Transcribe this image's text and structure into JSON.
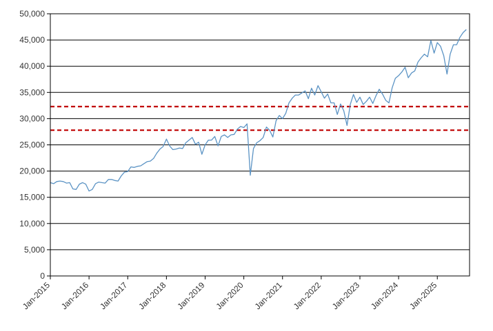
{
  "chart_data": {
    "type": "line",
    "title": "",
    "xlabel": "",
    "ylabel": "",
    "ylim": [
      0,
      50000
    ],
    "xlim": [
      "2015-01",
      "2025-11"
    ],
    "grid": true,
    "y_ticks": [
      0,
      5000,
      10000,
      15000,
      20000,
      25000,
      30000,
      35000,
      40000,
      45000,
      50000
    ],
    "y_tick_labels": [
      "0",
      "5,000",
      "10,000",
      "15,000",
      "20,000",
      "25,000",
      "30,000",
      "35,000",
      "40,000",
      "45,000",
      "50,000"
    ],
    "x_ticks": [
      "2015-01",
      "2016-01",
      "2017-01",
      "2018-01",
      "2019-01",
      "2020-01",
      "2021-01",
      "2022-01",
      "2023-01",
      "2024-01",
      "2025-01"
    ],
    "x_tick_labels": [
      "Jan-2015",
      "Jan-2016",
      "Jan-2017",
      "Jan-2018",
      "Jan-2019",
      "Jan-2020",
      "Jan-2021",
      "Jan-2022",
      "Jan-2023",
      "Jan-2024",
      "Jan-2025"
    ],
    "reference_lines": [
      {
        "y": 32300,
        "style": "dashed",
        "color": "#c00000"
      },
      {
        "y": 27800,
        "style": "dashed",
        "color": "#c00000"
      }
    ],
    "series": [
      {
        "color": "#5b93c4",
        "points": [
          [
            "2015-01",
            17800
          ],
          [
            "2015-02",
            17600
          ],
          [
            "2015-03",
            18000
          ],
          [
            "2015-04",
            18100
          ],
          [
            "2015-05",
            18000
          ],
          [
            "2015-06",
            17700
          ],
          [
            "2015-07",
            17800
          ],
          [
            "2015-08",
            16600
          ],
          [
            "2015-09",
            16500
          ],
          [
            "2015-10",
            17500
          ],
          [
            "2015-11",
            17800
          ],
          [
            "2015-12",
            17500
          ],
          [
            "2016-01",
            16200
          ],
          [
            "2016-02",
            16500
          ],
          [
            "2016-03",
            17600
          ],
          [
            "2016-04",
            17900
          ],
          [
            "2016-05",
            17800
          ],
          [
            "2016-06",
            17700
          ],
          [
            "2016-07",
            18400
          ],
          [
            "2016-08",
            18400
          ],
          [
            "2016-09",
            18200
          ],
          [
            "2016-10",
            18100
          ],
          [
            "2016-11",
            19100
          ],
          [
            "2016-12",
            19800
          ],
          [
            "2017-01",
            19900
          ],
          [
            "2017-02",
            20800
          ],
          [
            "2017-03",
            20700
          ],
          [
            "2017-04",
            20900
          ],
          [
            "2017-05",
            21000
          ],
          [
            "2017-06",
            21400
          ],
          [
            "2017-07",
            21800
          ],
          [
            "2017-08",
            21900
          ],
          [
            "2017-09",
            22400
          ],
          [
            "2017-10",
            23400
          ],
          [
            "2017-11",
            24200
          ],
          [
            "2017-12",
            24700
          ],
          [
            "2018-01",
            26100
          ],
          [
            "2018-02",
            24800
          ],
          [
            "2018-03",
            24100
          ],
          [
            "2018-04",
            24200
          ],
          [
            "2018-05",
            24400
          ],
          [
            "2018-06",
            24300
          ],
          [
            "2018-07",
            25400
          ],
          [
            "2018-08",
            25900
          ],
          [
            "2018-09",
            26400
          ],
          [
            "2018-10",
            25100
          ],
          [
            "2018-11",
            25500
          ],
          [
            "2018-12",
            23200
          ],
          [
            "2019-01",
            25000
          ],
          [
            "2019-02",
            25900
          ],
          [
            "2019-03",
            25900
          ],
          [
            "2019-04",
            26600
          ],
          [
            "2019-05",
            24800
          ],
          [
            "2019-06",
            26600
          ],
          [
            "2019-07",
            26900
          ],
          [
            "2019-08",
            26400
          ],
          [
            "2019-09",
            26900
          ],
          [
            "2019-10",
            27000
          ],
          [
            "2019-11",
            28000
          ],
          [
            "2019-12",
            28500
          ],
          [
            "2020-01",
            28300
          ],
          [
            "2020-02",
            29000
          ],
          [
            "2020-03",
            19200
          ],
          [
            "2020-04",
            24300
          ],
          [
            "2020-05",
            25400
          ],
          [
            "2020-06",
            25800
          ],
          [
            "2020-07",
            26400
          ],
          [
            "2020-08",
            28400
          ],
          [
            "2020-09",
            27800
          ],
          [
            "2020-10",
            26500
          ],
          [
            "2020-11",
            29600
          ],
          [
            "2020-12",
            30600
          ],
          [
            "2021-01",
            30000
          ],
          [
            "2021-02",
            31000
          ],
          [
            "2021-03",
            33000
          ],
          [
            "2021-04",
            33900
          ],
          [
            "2021-05",
            34500
          ],
          [
            "2021-06",
            34500
          ],
          [
            "2021-07",
            34900
          ],
          [
            "2021-08",
            35300
          ],
          [
            "2021-09",
            33800
          ],
          [
            "2021-10",
            35800
          ],
          [
            "2021-11",
            34500
          ],
          [
            "2021-12",
            36300
          ],
          [
            "2022-01",
            35100
          ],
          [
            "2022-02",
            33900
          ],
          [
            "2022-03",
            34700
          ],
          [
            "2022-04",
            33000
          ],
          [
            "2022-05",
            33000
          ],
          [
            "2022-06",
            30800
          ],
          [
            "2022-07",
            32800
          ],
          [
            "2022-08",
            31500
          ],
          [
            "2022-09",
            28700
          ],
          [
            "2022-10",
            32700
          ],
          [
            "2022-11",
            34600
          ],
          [
            "2022-12",
            33100
          ],
          [
            "2023-01",
            34100
          ],
          [
            "2023-02",
            32700
          ],
          [
            "2023-03",
            33300
          ],
          [
            "2023-04",
            34100
          ],
          [
            "2023-05",
            32900
          ],
          [
            "2023-06",
            34400
          ],
          [
            "2023-07",
            35600
          ],
          [
            "2023-08",
            34700
          ],
          [
            "2023-09",
            33500
          ],
          [
            "2023-10",
            33000
          ],
          [
            "2023-11",
            35900
          ],
          [
            "2023-12",
            37700
          ],
          [
            "2024-01",
            38200
          ],
          [
            "2024-02",
            38900
          ],
          [
            "2024-03",
            39800
          ],
          [
            "2024-04",
            37800
          ],
          [
            "2024-05",
            38700
          ],
          [
            "2024-06",
            39100
          ],
          [
            "2024-07",
            40800
          ],
          [
            "2024-08",
            41600
          ],
          [
            "2024-09",
            42300
          ],
          [
            "2024-10",
            41800
          ],
          [
            "2024-11",
            44900
          ],
          [
            "2024-12",
            42500
          ],
          [
            "2025-01",
            44500
          ],
          [
            "2025-02",
            43800
          ],
          [
            "2025-03",
            42000
          ],
          [
            "2025-04",
            38500
          ],
          [
            "2025-05",
            42300
          ],
          [
            "2025-06",
            44100
          ],
          [
            "2025-07",
            44100
          ],
          [
            "2025-08",
            45500
          ],
          [
            "2025-09",
            46400
          ],
          [
            "2025-10",
            47000
          ]
        ]
      }
    ]
  }
}
